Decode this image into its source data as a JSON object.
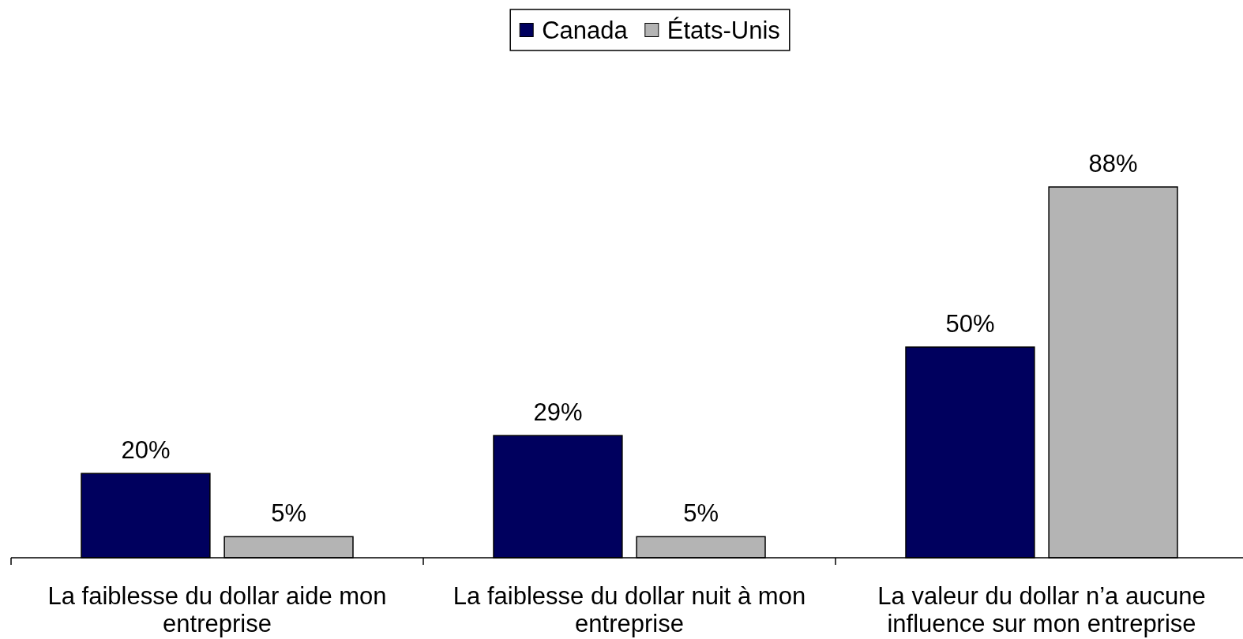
{
  "chart_data": {
    "type": "bar",
    "categories": [
      "La faiblesse du dollar aide mon entreprise",
      "La faiblesse du dollar nuit à mon entreprise",
      "La valeur du dollar n’a aucune influence sur mon entreprise"
    ],
    "series": [
      {
        "name": "Canada",
        "color": "#00005e",
        "values": [
          20,
          29,
          50
        ],
        "value_labels": [
          "20%",
          "29%",
          "50%"
        ]
      },
      {
        "name": "États-Unis",
        "color": "#b4b4b4",
        "values": [
          5,
          5,
          88
        ],
        "value_labels": [
          "5%",
          "5%",
          "88%"
        ]
      }
    ],
    "legend": "top"
  }
}
